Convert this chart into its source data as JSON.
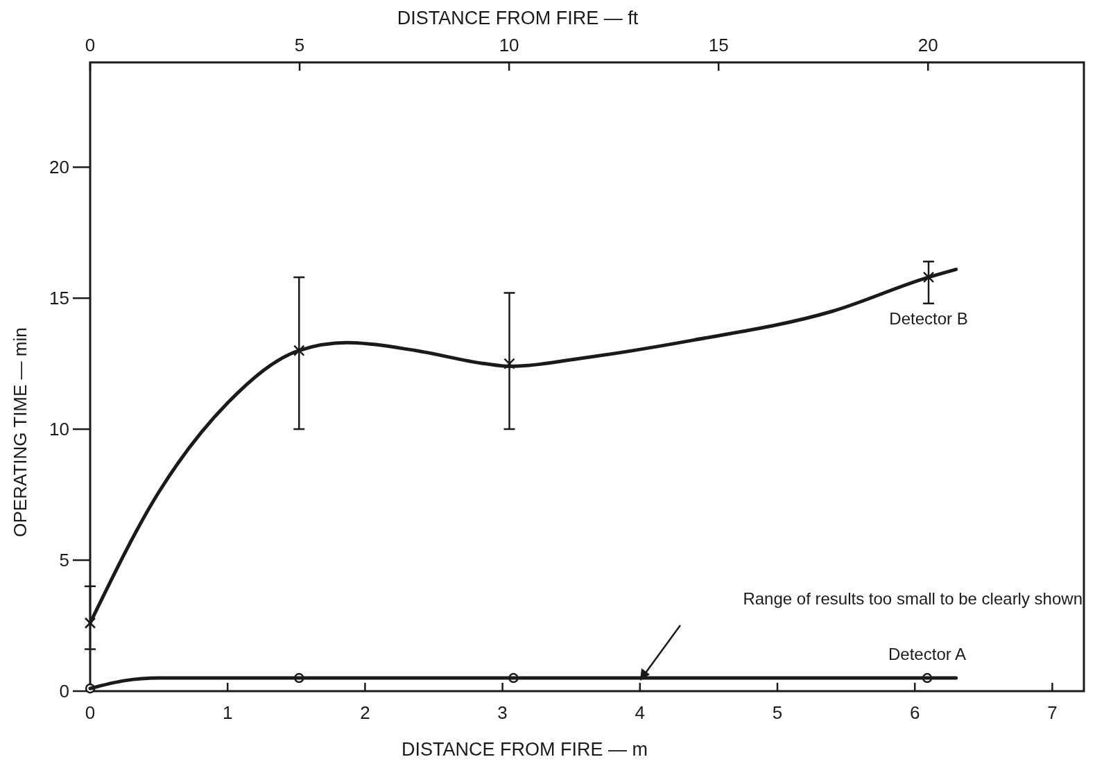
{
  "chart_data": {
    "type": "scatter",
    "xlabel": "DISTANCE FROM FIRE — m",
    "x2label": "DISTANCE FROM FIRE — ft",
    "ylabel": "OPERATING TIME — min",
    "xlim": [
      0,
      7.23
    ],
    "xticks": [
      0,
      1,
      2,
      3,
      4,
      5,
      6,
      7
    ],
    "x2lim": [
      0,
      23.72
    ],
    "x2ticks": [
      0,
      5,
      10,
      15,
      20
    ],
    "ylim": [
      0,
      24
    ],
    "yticks": [
      0,
      5,
      10,
      15,
      20
    ],
    "grid": false,
    "series": [
      {
        "name": "Detector B",
        "marker": "cross",
        "color": "#1a1a1a",
        "x": [
          0,
          1.52,
          3.05,
          6.1
        ],
        "values": [
          2.6,
          13.0,
          12.5,
          15.8
        ],
        "errors": [
          [
            1.6,
            4.0
          ],
          [
            10.0,
            15.8
          ],
          [
            10.0,
            15.2
          ],
          [
            14.8,
            16.4
          ]
        ]
      },
      {
        "type": "line",
        "marker": "none",
        "color": "#1a1a1a",
        "x": [
          0,
          0.5,
          1.0,
          1.52,
          1.87,
          2.37,
          2.87,
          3.05,
          3.63,
          4.39,
          5.4,
          6.1,
          6.3
        ],
        "values": [
          2.6,
          7.6,
          11.0,
          13.0,
          13.3,
          13.0,
          12.5,
          12.4,
          12.75,
          13.4,
          14.5,
          15.8,
          16.1
        ]
      },
      {
        "name": "Detector A",
        "marker": "circle",
        "color": "#1a1a1a",
        "x": [
          0,
          1.52,
          3.08,
          6.09
        ],
        "values": [
          0.1,
          0.5,
          0.5,
          0.5
        ]
      },
      {
        "type": "line",
        "marker": "none",
        "color": "#1a1a1a",
        "x": [
          0,
          0.25,
          0.5,
          1.52,
          3.08,
          6.09,
          6.3
        ],
        "values": [
          0.1,
          0.4,
          0.5,
          0.5,
          0.5,
          0.5,
          0.5
        ]
      }
    ],
    "annotations": [
      "Range of results too small to be clearly shown"
    ]
  }
}
